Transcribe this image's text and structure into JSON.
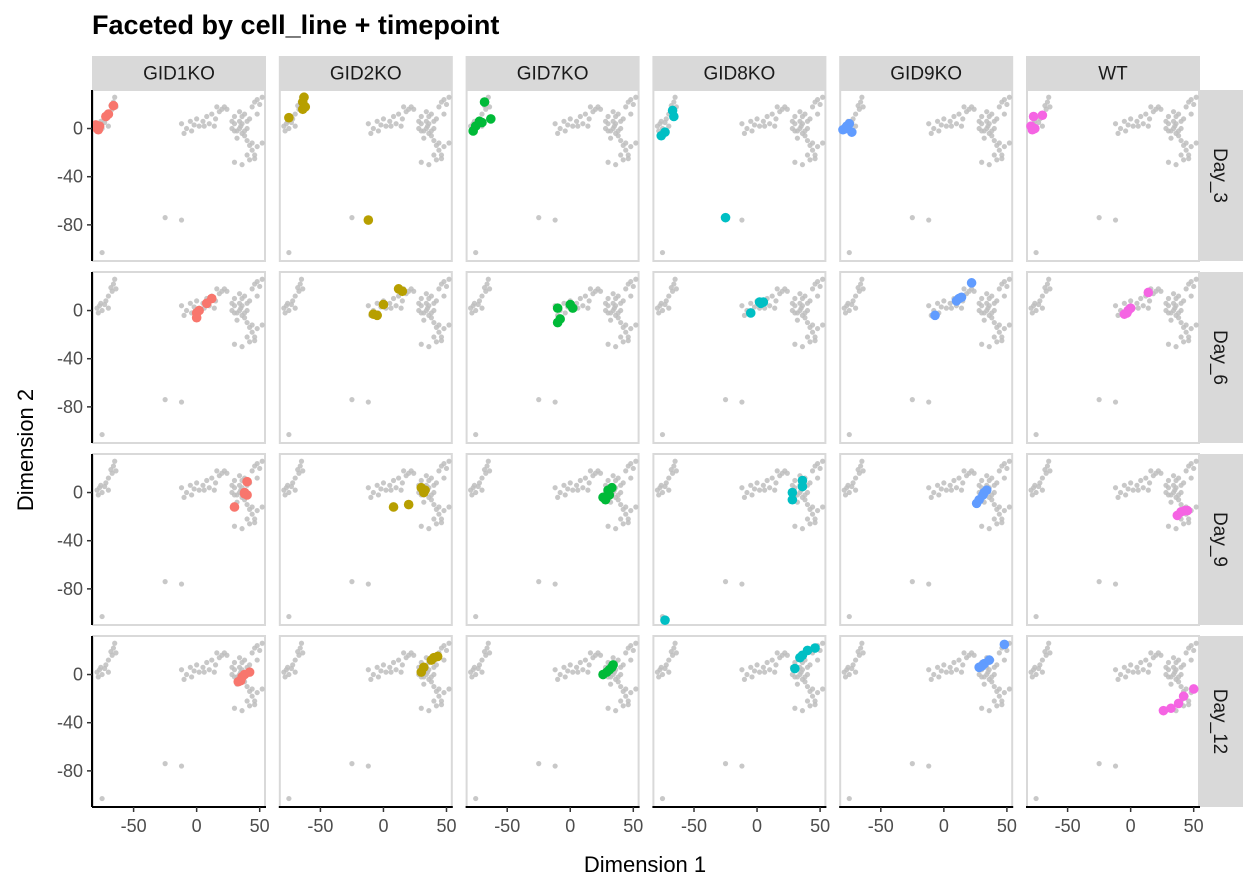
{
  "chart_data": {
    "type": "scatter",
    "title": "Faceted by cell_line + timepoint",
    "xlabel": "Dimension 1",
    "ylabel": "Dimension 2",
    "xlim": [
      -83,
      55
    ],
    "ylim": [
      -110,
      32
    ],
    "x_ticks": [
      -50,
      0,
      50
    ],
    "x_tick_labels": [
      "-50",
      "0",
      "50"
    ],
    "y_ticks": [
      0,
      -40,
      -80
    ],
    "y_tick_labels": [
      "0",
      "-40",
      "-80"
    ],
    "col_facets": [
      "GID1KO",
      "GID2KO",
      "GID7KO",
      "GID8KO",
      "GID9KO",
      "WT"
    ],
    "row_facets": [
      "Day_3",
      "Day_6",
      "Day_9",
      "Day_12"
    ],
    "background_color": "#bebebe",
    "series_colors": {
      "GID1KO": "#F8766D",
      "GID2KO": "#B79F00",
      "GID7KO": "#00BA38",
      "GID8KO": "#00BFC4",
      "GID9KO": "#619CFF",
      "WT": "#F564E3"
    },
    "background_points": [
      [
        -79,
        2
      ],
      [
        -77,
        4
      ],
      [
        -75,
        0
      ],
      [
        -78,
        -2
      ],
      [
        -73,
        5
      ],
      [
        -70,
        12
      ],
      [
        -72,
        8
      ],
      [
        -67,
        16
      ],
      [
        -66,
        22
      ],
      [
        -68,
        19
      ],
      [
        -65,
        26
      ],
      [
        -64,
        18
      ],
      [
        -70,
        2
      ],
      [
        -76,
        6
      ],
      [
        -12,
        4
      ],
      [
        -8,
        0
      ],
      [
        -5,
        6
      ],
      [
        -2,
        3
      ],
      [
        0,
        8
      ],
      [
        2,
        2
      ],
      [
        5,
        6
      ],
      [
        8,
        10
      ],
      [
        10,
        4
      ],
      [
        12,
        12
      ],
      [
        15,
        8
      ],
      [
        18,
        14
      ],
      [
        20,
        16
      ],
      [
        22,
        18
      ],
      [
        24,
        16
      ],
      [
        16,
        18
      ],
      [
        -10,
        -4
      ],
      [
        -4,
        -2
      ],
      [
        6,
        2
      ],
      [
        14,
        2
      ],
      [
        28,
        0
      ],
      [
        30,
        4
      ],
      [
        32,
        -2
      ],
      [
        34,
        6
      ],
      [
        35,
        2
      ],
      [
        36,
        10
      ],
      [
        38,
        12
      ],
      [
        40,
        0
      ],
      [
        42,
        8
      ],
      [
        44,
        18
      ],
      [
        46,
        22
      ],
      [
        48,
        24
      ],
      [
        50,
        20
      ],
      [
        52,
        26
      ],
      [
        36,
        -4
      ],
      [
        38,
        -6
      ],
      [
        40,
        -10
      ],
      [
        42,
        -14
      ],
      [
        44,
        -18
      ],
      [
        46,
        -22
      ],
      [
        30,
        -2
      ],
      [
        32,
        -8
      ],
      [
        34,
        0
      ],
      [
        28,
        6
      ],
      [
        40,
        6
      ],
      [
        38,
        -2
      ],
      [
        36,
        4
      ],
      [
        30,
        10
      ],
      [
        34,
        14
      ],
      [
        48,
        12
      ],
      [
        44,
        -12
      ],
      [
        48,
        -15
      ],
      [
        52,
        -12
      ],
      [
        46,
        -25
      ],
      [
        40,
        -22
      ],
      [
        36,
        -30
      ],
      [
        30,
        -28
      ],
      [
        42,
        -26
      ],
      [
        -25,
        -74
      ],
      [
        -12,
        -76
      ],
      [
        -75,
        -103
      ]
    ],
    "highlight_points": {
      "Day_3": {
        "GID1KO": [
          [
            -77,
            2
          ],
          [
            -79,
            0
          ],
          [
            -80,
            3
          ],
          [
            -78,
            -1
          ],
          [
            -72,
            10
          ],
          [
            -70,
            12
          ],
          [
            -66,
            19
          ]
        ],
        "GID2KO": [
          [
            -75,
            9
          ],
          [
            -64,
            22
          ],
          [
            -63,
            26
          ],
          [
            -64,
            16
          ],
          [
            -62,
            18
          ],
          [
            -12,
            -76
          ]
        ],
        "GID7KO": [
          [
            -77,
            -2
          ],
          [
            -75,
            2
          ],
          [
            -72,
            6
          ],
          [
            -68,
            22
          ],
          [
            -63,
            8
          ],
          [
            -70,
            5
          ]
        ],
        "GID8KO": [
          [
            -76,
            -6
          ],
          [
            -73,
            -3
          ],
          [
            -67,
            15
          ],
          [
            -66,
            10
          ],
          [
            -25,
            -74
          ]
        ],
        "GID9KO": [
          [
            -80,
            -1
          ],
          [
            -77,
            2
          ],
          [
            -75,
            4
          ],
          [
            -73,
            -3
          ],
          [
            -78,
            0
          ]
        ],
        "WT": [
          [
            -78,
            -1
          ],
          [
            -76,
            0
          ],
          [
            -77,
            10
          ],
          [
            -70,
            11
          ],
          [
            -79,
            2
          ]
        ]
      },
      "Day_6": {
        "GID1KO": [
          [
            0,
            -2
          ],
          [
            0,
            -6
          ],
          [
            8,
            6
          ],
          [
            12,
            10
          ],
          [
            2,
            0
          ]
        ],
        "GID2KO": [
          [
            -8,
            -3
          ],
          [
            -5,
            -4
          ],
          [
            0,
            5
          ],
          [
            12,
            18
          ],
          [
            15,
            16
          ]
        ],
        "GID7KO": [
          [
            -10,
            2
          ],
          [
            -10,
            -10
          ],
          [
            -8,
            -7
          ],
          [
            0,
            5
          ],
          [
            2,
            2
          ]
        ],
        "GID8KO": [
          [
            -5,
            -2
          ],
          [
            2,
            7
          ],
          [
            5,
            7
          ],
          [
            3,
            6
          ]
        ],
        "GID9KO": [
          [
            -7,
            -4
          ],
          [
            10,
            8
          ],
          [
            14,
            11
          ],
          [
            22,
            23
          ],
          [
            12,
            10
          ]
        ],
        "WT": [
          [
            -5,
            -3
          ],
          [
            -3,
            -2
          ],
          [
            -2,
            0
          ],
          [
            0,
            2
          ],
          [
            14,
            15
          ]
        ]
      },
      "Day_9": {
        "GID1KO": [
          [
            30,
            -12
          ],
          [
            38,
            0
          ],
          [
            40,
            9
          ],
          [
            40,
            -2
          ],
          [
            38,
            -1
          ]
        ],
        "GID2KO": [
          [
            8,
            -12
          ],
          [
            20,
            -10
          ],
          [
            32,
            0
          ],
          [
            30,
            4
          ],
          [
            33,
            2
          ]
        ],
        "GID7KO": [
          [
            26,
            -4
          ],
          [
            30,
            2
          ],
          [
            33,
            4
          ],
          [
            28,
            -6
          ],
          [
            31,
            -2
          ]
        ],
        "GID8KO": [
          [
            28,
            -6
          ],
          [
            28,
            0
          ],
          [
            36,
            5
          ],
          [
            36,
            10
          ],
          [
            -73,
            -106
          ]
        ],
        "GID9KO": [
          [
            26,
            -9
          ],
          [
            28,
            -6
          ],
          [
            31,
            -2
          ],
          [
            32,
            0
          ],
          [
            34,
            2
          ]
        ],
        "WT": [
          [
            37,
            -19
          ],
          [
            40,
            -16
          ],
          [
            43,
            -15
          ],
          [
            45,
            -15
          ]
        ]
      },
      "Day_12": {
        "GID1KO": [
          [
            33,
            -6
          ],
          [
            35,
            -5
          ],
          [
            36,
            -2
          ],
          [
            38,
            0
          ],
          [
            42,
            2
          ]
        ],
        "GID2KO": [
          [
            30,
            2
          ],
          [
            32,
            6
          ],
          [
            38,
            12
          ],
          [
            40,
            14
          ],
          [
            43,
            15
          ]
        ],
        "GID7KO": [
          [
            26,
            0
          ],
          [
            29,
            2
          ],
          [
            31,
            4
          ],
          [
            34,
            8
          ],
          [
            33,
            6
          ]
        ],
        "GID8KO": [
          [
            30,
            5
          ],
          [
            34,
            14
          ],
          [
            36,
            16
          ],
          [
            40,
            20
          ],
          [
            46,
            22
          ]
        ],
        "GID9KO": [
          [
            28,
            6
          ],
          [
            32,
            9
          ],
          [
            36,
            12
          ],
          [
            48,
            25
          ],
          [
            30,
            7
          ]
        ],
        "WT": [
          [
            26,
            -30
          ],
          [
            32,
            -28
          ],
          [
            38,
            -24
          ],
          [
            42,
            -18
          ],
          [
            50,
            -12
          ]
        ]
      }
    }
  }
}
